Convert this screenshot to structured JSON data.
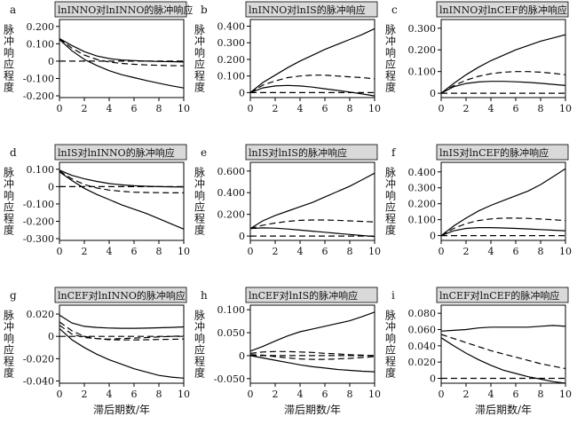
{
  "chart_data": [
    {
      "type": "line",
      "letter": "a",
      "title": "lnINNO对lnINNO的脉冲响应",
      "ylabel": "脉冲响应程度",
      "xlabel": "",
      "x_ticks": [
        0,
        2,
        4,
        6,
        8,
        10
      ],
      "xlim": [
        0,
        10
      ],
      "y_ticks": [
        0.2,
        0.1,
        0,
        -0.1,
        -0.2
      ],
      "y_tick_labels": [
        "0.200",
        "0.100",
        "0",
        "-0.100",
        "-0.200"
      ],
      "ylim": [
        -0.21,
        0.24
      ],
      "series": [
        {
          "style": "solid",
          "values": [
            0.13,
            0.09,
            0.055,
            0.03,
            0.015,
            0.007,
            0.003,
            0.0,
            -0.002,
            -0.003,
            -0.005
          ]
        },
        {
          "style": "dashed",
          "values": [
            0.13,
            0.075,
            0.035,
            0.01,
            -0.005,
            -0.013,
            -0.018,
            -0.022,
            -0.024,
            -0.026,
            -0.027
          ]
        },
        {
          "style": "solid",
          "values": [
            0.125,
            0.06,
            0.01,
            -0.025,
            -0.055,
            -0.078,
            -0.095,
            -0.112,
            -0.127,
            -0.142,
            -0.155
          ]
        },
        {
          "style": "dashed",
          "values": [
            0,
            0,
            0,
            0,
            0,
            0,
            0,
            0,
            0,
            0,
            0
          ]
        }
      ]
    },
    {
      "type": "line",
      "letter": "b",
      "title": "lnINNO对lnIS的脉冲响应",
      "ylabel": "脉冲响应程度",
      "xlabel": "",
      "x_ticks": [
        0,
        2,
        4,
        6,
        8,
        10
      ],
      "xlim": [
        0,
        10
      ],
      "y_ticks": [
        0.4,
        0.3,
        0.2,
        0.1,
        0
      ],
      "y_tick_labels": [
        "0.400",
        "0.300",
        "0.200",
        "0.100",
        "0"
      ],
      "ylim": [
        -0.03,
        0.44
      ],
      "series": [
        {
          "style": "solid",
          "values": [
            0.0,
            0.06,
            0.105,
            0.15,
            0.19,
            0.225,
            0.26,
            0.29,
            0.32,
            0.35,
            0.385
          ]
        },
        {
          "style": "dashed",
          "values": [
            0.0,
            0.045,
            0.07,
            0.09,
            0.1,
            0.105,
            0.105,
            0.1,
            0.095,
            0.09,
            0.083
          ]
        },
        {
          "style": "solid",
          "values": [
            0.0,
            0.028,
            0.04,
            0.043,
            0.04,
            0.033,
            0.023,
            0.013,
            0.003,
            -0.008,
            -0.02
          ]
        },
        {
          "style": "dashed",
          "values": [
            0,
            0,
            0,
            0,
            0,
            0,
            0,
            0,
            0,
            0,
            0
          ]
        }
      ]
    },
    {
      "type": "line",
      "letter": "c",
      "title": "lnINNO对lnCEF的脉冲响应",
      "ylabel": "脉冲响应程度",
      "xlabel": "",
      "x_ticks": [
        0,
        2,
        4,
        6,
        8,
        10
      ],
      "xlim": [
        0,
        10
      ],
      "y_ticks": [
        0.3,
        0.2,
        0.1,
        0
      ],
      "y_tick_labels": [
        "0.300",
        "0.200",
        "0.100",
        "0"
      ],
      "ylim": [
        -0.02,
        0.34
      ],
      "series": [
        {
          "style": "solid",
          "values": [
            0.0,
            0.045,
            0.085,
            0.12,
            0.15,
            0.175,
            0.2,
            0.22,
            0.24,
            0.255,
            0.27
          ]
        },
        {
          "style": "dashed",
          "values": [
            0.0,
            0.035,
            0.06,
            0.078,
            0.09,
            0.097,
            0.1,
            0.1,
            0.097,
            0.092,
            0.085
          ]
        },
        {
          "style": "solid",
          "values": [
            0.0,
            0.03,
            0.045,
            0.052,
            0.055,
            0.055,
            0.053,
            0.05,
            0.046,
            0.041,
            0.036
          ]
        },
        {
          "style": "dashed",
          "values": [
            0,
            0,
            0,
            0,
            0,
            0,
            0,
            0,
            0,
            0,
            0
          ]
        }
      ]
    },
    {
      "type": "line",
      "letter": "d",
      "title": "lnIS对lnINNO的脉冲响应",
      "ylabel": "脉冲响应程度",
      "xlabel": "",
      "x_ticks": [
        0,
        2,
        4,
        6,
        8,
        10
      ],
      "xlim": [
        0,
        10
      ],
      "y_ticks": [
        0.1,
        0,
        -0.1,
        -0.2,
        -0.3
      ],
      "y_tick_labels": [
        "0.100",
        "0",
        "-0.100",
        "-0.200",
        "-0.300"
      ],
      "ylim": [
        -0.31,
        0.14
      ],
      "series": [
        {
          "style": "solid",
          "values": [
            0.095,
            0.065,
            0.045,
            0.03,
            0.018,
            0.01,
            0.005,
            0.002,
            0.0,
            -0.001,
            -0.002
          ]
        },
        {
          "style": "dashed",
          "values": [
            0.09,
            0.045,
            0.012,
            -0.008,
            -0.02,
            -0.027,
            -0.032,
            -0.034,
            -0.035,
            -0.036,
            -0.036
          ]
        },
        {
          "style": "solid",
          "values": [
            0.085,
            0.035,
            -0.01,
            -0.045,
            -0.075,
            -0.105,
            -0.13,
            -0.155,
            -0.185,
            -0.215,
            -0.245
          ]
        },
        {
          "style": "dashed",
          "values": [
            0,
            0,
            0,
            0,
            0,
            0,
            0,
            0,
            0,
            0,
            0
          ]
        }
      ]
    },
    {
      "type": "line",
      "letter": "e",
      "title": "lnIS对lnIS的脉冲响应",
      "ylabel": "脉冲响应程度",
      "xlabel": "",
      "x_ticks": [
        0,
        2,
        4,
        6,
        8,
        10
      ],
      "xlim": [
        0,
        10
      ],
      "y_ticks": [
        0.6,
        0.4,
        0.2,
        0
      ],
      "y_tick_labels": [
        "0.600",
        "0.400",
        "0.200",
        "0"
      ],
      "ylim": [
        -0.04,
        0.68
      ],
      "series": [
        {
          "style": "solid",
          "values": [
            0.07,
            0.14,
            0.19,
            0.23,
            0.27,
            0.31,
            0.36,
            0.41,
            0.46,
            0.52,
            0.58
          ]
        },
        {
          "style": "dashed",
          "values": [
            0.07,
            0.1,
            0.12,
            0.135,
            0.145,
            0.148,
            0.148,
            0.145,
            0.14,
            0.135,
            0.13
          ]
        },
        {
          "style": "solid",
          "values": [
            0.07,
            0.075,
            0.073,
            0.065,
            0.055,
            0.045,
            0.035,
            0.025,
            0.015,
            0.005,
            -0.005
          ]
        },
        {
          "style": "dashed",
          "values": [
            0,
            0,
            0,
            0,
            0,
            0,
            0,
            0,
            0,
            0,
            0
          ]
        }
      ]
    },
    {
      "type": "line",
      "letter": "f",
      "title": "lnIS对lnCEF的脉冲响应",
      "ylabel": "脉冲响应程度",
      "xlabel": "",
      "x_ticks": [
        0,
        2,
        4,
        6,
        8,
        10
      ],
      "xlim": [
        0,
        10
      ],
      "y_ticks": [
        0.4,
        0.3,
        0.2,
        0.1,
        0
      ],
      "y_tick_labels": [
        "0.400",
        "0.300",
        "0.200",
        "0.100",
        "0"
      ],
      "ylim": [
        -0.03,
        0.46
      ],
      "series": [
        {
          "style": "solid",
          "values": [
            0.0,
            0.06,
            0.11,
            0.155,
            0.19,
            0.22,
            0.25,
            0.28,
            0.32,
            0.37,
            0.42
          ]
        },
        {
          "style": "dashed",
          "values": [
            0.0,
            0.045,
            0.075,
            0.095,
            0.105,
            0.11,
            0.11,
            0.108,
            0.104,
            0.1,
            0.095
          ]
        },
        {
          "style": "solid",
          "values": [
            0.0,
            0.03,
            0.045,
            0.05,
            0.05,
            0.048,
            0.045,
            0.042,
            0.038,
            0.034,
            0.03
          ]
        },
        {
          "style": "dashed",
          "values": [
            0,
            0,
            0,
            0,
            0,
            0,
            0,
            0,
            0,
            0,
            0
          ]
        }
      ]
    },
    {
      "type": "line",
      "letter": "g",
      "title": "lnCEF对lnINNO的脉冲响应",
      "ylabel": "脉冲响应程度",
      "xlabel": "滞后期数/年",
      "x_ticks": [
        0,
        2,
        4,
        6,
        8,
        10
      ],
      "xlim": [
        0,
        10
      ],
      "y_ticks": [
        0.02,
        0,
        -0.02,
        -0.04
      ],
      "y_tick_labels": [
        "0.020",
        "0",
        "-0.020",
        "-0.040"
      ],
      "ylim": [
        -0.042,
        0.028
      ],
      "series": [
        {
          "style": "solid",
          "values": [
            0.019,
            0.012,
            0.009,
            0.008,
            0.0075,
            0.0072,
            0.0072,
            0.0074,
            0.0077,
            0.008,
            0.0085
          ]
        },
        {
          "style": "dashed",
          "values": [
            0.013,
            0.005,
            0.0,
            -0.002,
            -0.003,
            -0.0032,
            -0.0032,
            -0.003,
            -0.0028,
            -0.0026,
            -0.0024
          ]
        },
        {
          "style": "dashed",
          "values": [
            0.01,
            0.002,
            -0.001,
            -0.002,
            -0.0025,
            -0.002,
            -0.0015,
            -0.001,
            -0.0005,
            0.0,
            0.0005
          ]
        },
        {
          "style": "solid",
          "values": [
            0.007,
            -0.003,
            -0.01,
            -0.016,
            -0.021,
            -0.025,
            -0.029,
            -0.032,
            -0.035,
            -0.0365,
            -0.0375
          ]
        },
        {
          "style": "dashed",
          "values": [
            0,
            0,
            0,
            0,
            0,
            0,
            0,
            0,
            0,
            0,
            0
          ]
        }
      ]
    },
    {
      "type": "line",
      "letter": "h",
      "title": "lnCEF对lnIS的脉冲响应",
      "ylabel": "脉冲响应程度",
      "xlabel": "滞后期数/年",
      "x_ticks": [
        0,
        2,
        4,
        6,
        8,
        10
      ],
      "xlim": [
        0,
        10
      ],
      "y_ticks": [
        0.1,
        0.05,
        0,
        -0.05
      ],
      "y_tick_labels": [
        "0.100",
        "0.050",
        "0",
        "-0.050"
      ],
      "ylim": [
        -0.06,
        0.11
      ],
      "series": [
        {
          "style": "solid",
          "values": [
            0.01,
            0.02,
            0.032,
            0.043,
            0.052,
            0.058,
            0.064,
            0.07,
            0.076,
            0.085,
            0.095
          ]
        },
        {
          "style": "dashed",
          "values": [
            0.005,
            0.008,
            0.009,
            0.009,
            0.008,
            0.007,
            0.005,
            0.004,
            0.002,
            0.001,
            0.0
          ]
        },
        {
          "style": "dashed",
          "values": [
            0.002,
            0.001,
            -0.002,
            -0.005,
            -0.007,
            -0.008,
            -0.008,
            -0.007,
            -0.006,
            -0.004,
            -0.002
          ]
        },
        {
          "style": "solid",
          "values": [
            0.0,
            -0.005,
            -0.01,
            -0.015,
            -0.02,
            -0.024,
            -0.027,
            -0.03,
            -0.032,
            -0.034,
            -0.035
          ]
        },
        {
          "style": "dashed",
          "values": [
            0,
            0,
            0,
            0,
            0,
            0,
            0,
            0,
            0,
            0,
            0
          ]
        }
      ]
    },
    {
      "type": "line",
      "letter": "i",
      "title": "lnCEF对lnCEF的脉冲响应",
      "ylabel": "脉冲响应程度",
      "xlabel": "滞后期数/年",
      "x_ticks": [
        0,
        2,
        4,
        6,
        8,
        10
      ],
      "xlim": [
        0,
        10
      ],
      "y_ticks": [
        0.08,
        0.06,
        0.04,
        0.02,
        0
      ],
      "y_tick_labels": [
        "0.080",
        "0.060",
        "0.040",
        "0.020",
        "0"
      ],
      "ylim": [
        -0.006,
        0.09
      ],
      "series": [
        {
          "style": "solid",
          "values": [
            0.058,
            0.059,
            0.06,
            0.062,
            0.063,
            0.063,
            0.063,
            0.063,
            0.064,
            0.065,
            0.064
          ]
        },
        {
          "style": "dashed",
          "values": [
            0.054,
            0.049,
            0.044,
            0.039,
            0.034,
            0.03,
            0.026,
            0.022,
            0.018,
            0.015,
            0.012
          ]
        },
        {
          "style": "solid",
          "values": [
            0.05,
            0.04,
            0.031,
            0.023,
            0.016,
            0.01,
            0.006,
            0.002,
            -0.001,
            -0.004,
            -0.006
          ]
        },
        {
          "style": "dashed",
          "values": [
            0,
            0,
            0,
            0,
            0,
            0,
            0,
            0,
            0,
            0,
            0
          ]
        }
      ]
    }
  ]
}
